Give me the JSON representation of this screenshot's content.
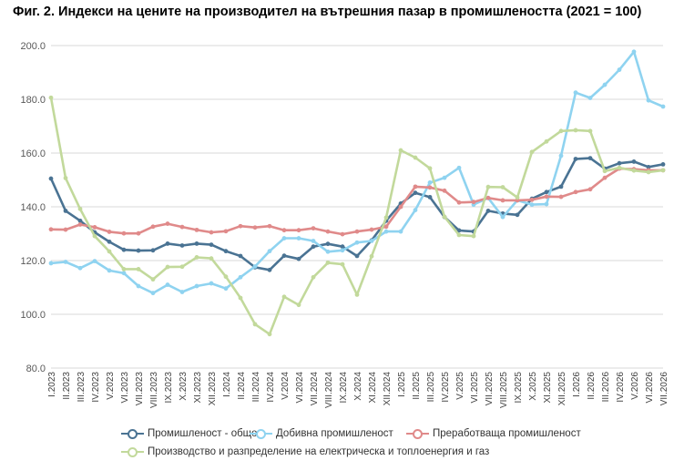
{
  "title": "Фиг. 2. Индекси на цените на производител на вътрешния пазар в промишлеността (2021 = 100)",
  "chart_data": {
    "type": "line",
    "categories": [
      "I.2023",
      "II.2023",
      "III.2023",
      "IV.2023",
      "V.2023",
      "VI.2023",
      "VII.2023",
      "VIII.2023",
      "IX.2023",
      "X.2023",
      "XI.2023",
      "XII.2023",
      "I.2024",
      "II.2024",
      "III.2024",
      "IV.2024",
      "V.2024",
      "VI.2024",
      "VII.2024",
      "VIII.2024",
      "IX.2024",
      "X.2024",
      "XI.2024",
      "XII.2024",
      "I.2025",
      "II.2025",
      "III.2025",
      "IV.2025",
      "V.2025",
      "VI.2025",
      "VII.2025",
      "VIII.2025",
      "IX.2025",
      "X.2025",
      "XI.2025",
      "XII.2025",
      "I.2026",
      "II.2026",
      "III.2026",
      "IV.2026",
      "V.2026",
      "VI.2026",
      "VII.2026"
    ],
    "ylim": [
      80,
      200
    ],
    "yticks": [
      "80.0",
      "100.0",
      "120.0",
      "140.0",
      "160.0",
      "180.0",
      "200.0"
    ],
    "grid": true,
    "legend_position": "bottom",
    "series": [
      {
        "name": "Промишленост - общо",
        "color": "#4a7393",
        "values": [
          150.5,
          138.5,
          134.8,
          130.5,
          127.0,
          124.0,
          123.7,
          123.8,
          126.3,
          125.6,
          126.3,
          125.9,
          123.5,
          121.7,
          117.5,
          116.5,
          121.8,
          120.6,
          125.2,
          126.2,
          125.2,
          121.7,
          127.5,
          134.8,
          141.2,
          145.2,
          143.6,
          136.2,
          131.2,
          130.8,
          138.5,
          137.5,
          137.0,
          143.0,
          145.5,
          147.5,
          157.8,
          158.1,
          154.2,
          156.2,
          156.8,
          154.8,
          155.8
        ]
      },
      {
        "name": "Добивна промишленост",
        "color": "#8fd3f0",
        "values": [
          119.0,
          119.5,
          117.2,
          119.8,
          116.3,
          115.3,
          110.5,
          107.9,
          111.0,
          108.3,
          110.5,
          111.5,
          109.6,
          113.8,
          117.8,
          123.5,
          128.3,
          128.3,
          127.3,
          123.3,
          123.8,
          126.7,
          127.3,
          130.8,
          130.8,
          138.8,
          149.0,
          150.8,
          154.5,
          140.8,
          143.3,
          136.2,
          142.4,
          140.8,
          141.0,
          159.0,
          182.5,
          180.5,
          185.4,
          191.0,
          197.7,
          179.6,
          177.3
        ]
      },
      {
        "name": "Преработваща промишленост",
        "color": "#e08a8a",
        "values": [
          131.6,
          131.5,
          133.4,
          132.4,
          130.7,
          130.1,
          130.1,
          132.6,
          133.7,
          132.5,
          131.4,
          130.5,
          130.9,
          132.8,
          132.3,
          132.8,
          131.3,
          131.3,
          132.0,
          130.8,
          129.8,
          130.8,
          131.5,
          132.6,
          140.0,
          147.5,
          147.2,
          146.0,
          141.6,
          141.8,
          143.3,
          142.4,
          142.4,
          142.6,
          143.8,
          143.7,
          145.5,
          146.5,
          150.8,
          154.2,
          154.0,
          153.6,
          153.6
        ]
      },
      {
        "name": "Производство и разпределение на електрическа и топлоенергия и газ",
        "color": "#c2d99b",
        "values": [
          180.6,
          150.7,
          139.2,
          129.1,
          123.4,
          116.8,
          116.8,
          113.0,
          117.6,
          117.7,
          121.2,
          120.8,
          114.0,
          106.1,
          96.3,
          92.6,
          106.5,
          103.5,
          113.8,
          119.2,
          118.6,
          107.3,
          121.6,
          136.0,
          161.0,
          158.3,
          154.3,
          136.3,
          129.5,
          129.1,
          147.4,
          147.3,
          143.5,
          160.4,
          164.3,
          168.2,
          168.5,
          168.2,
          153.3,
          154.5,
          153.5,
          152.9,
          153.6
        ]
      }
    ]
  }
}
